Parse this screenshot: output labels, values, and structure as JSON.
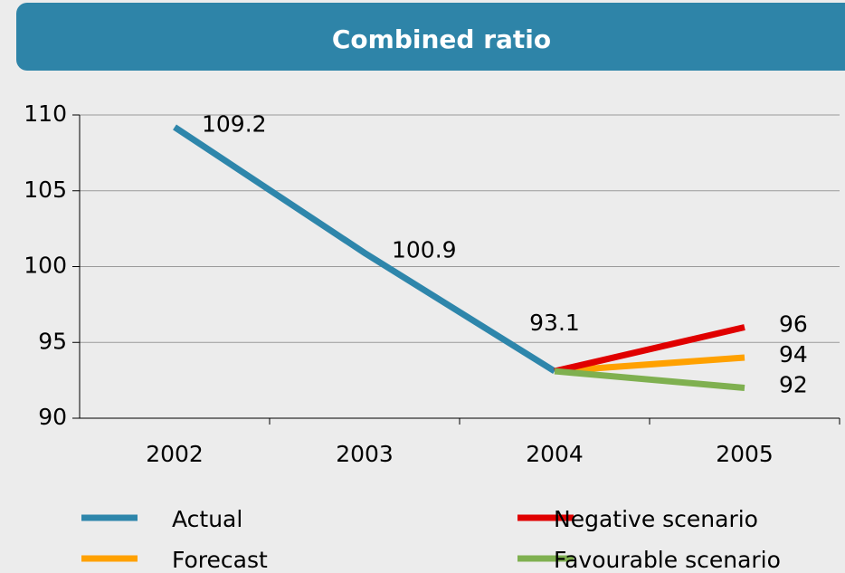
{
  "chart_data": {
    "type": "line",
    "title": "Combined ratio",
    "categories": [
      "2002",
      "2003",
      "2004",
      "2005"
    ],
    "series": [
      {
        "name": "Actual",
        "color": "#2e86ab",
        "values": [
          109.2,
          100.9,
          93.1,
          null
        ]
      },
      {
        "name": "Forecast",
        "color": "#ffa100",
        "values": [
          null,
          null,
          93.1,
          94
        ]
      },
      {
        "name": "Negative scenario",
        "color": "#e00000",
        "values": [
          null,
          null,
          93.1,
          96
        ]
      },
      {
        "name": "Favourable scenario",
        "color": "#7fb050",
        "values": [
          null,
          null,
          93.1,
          92
        ]
      }
    ],
    "ylim": [
      90,
      110
    ],
    "yticks": [
      90,
      95,
      100,
      105,
      110
    ],
    "grid": true
  }
}
